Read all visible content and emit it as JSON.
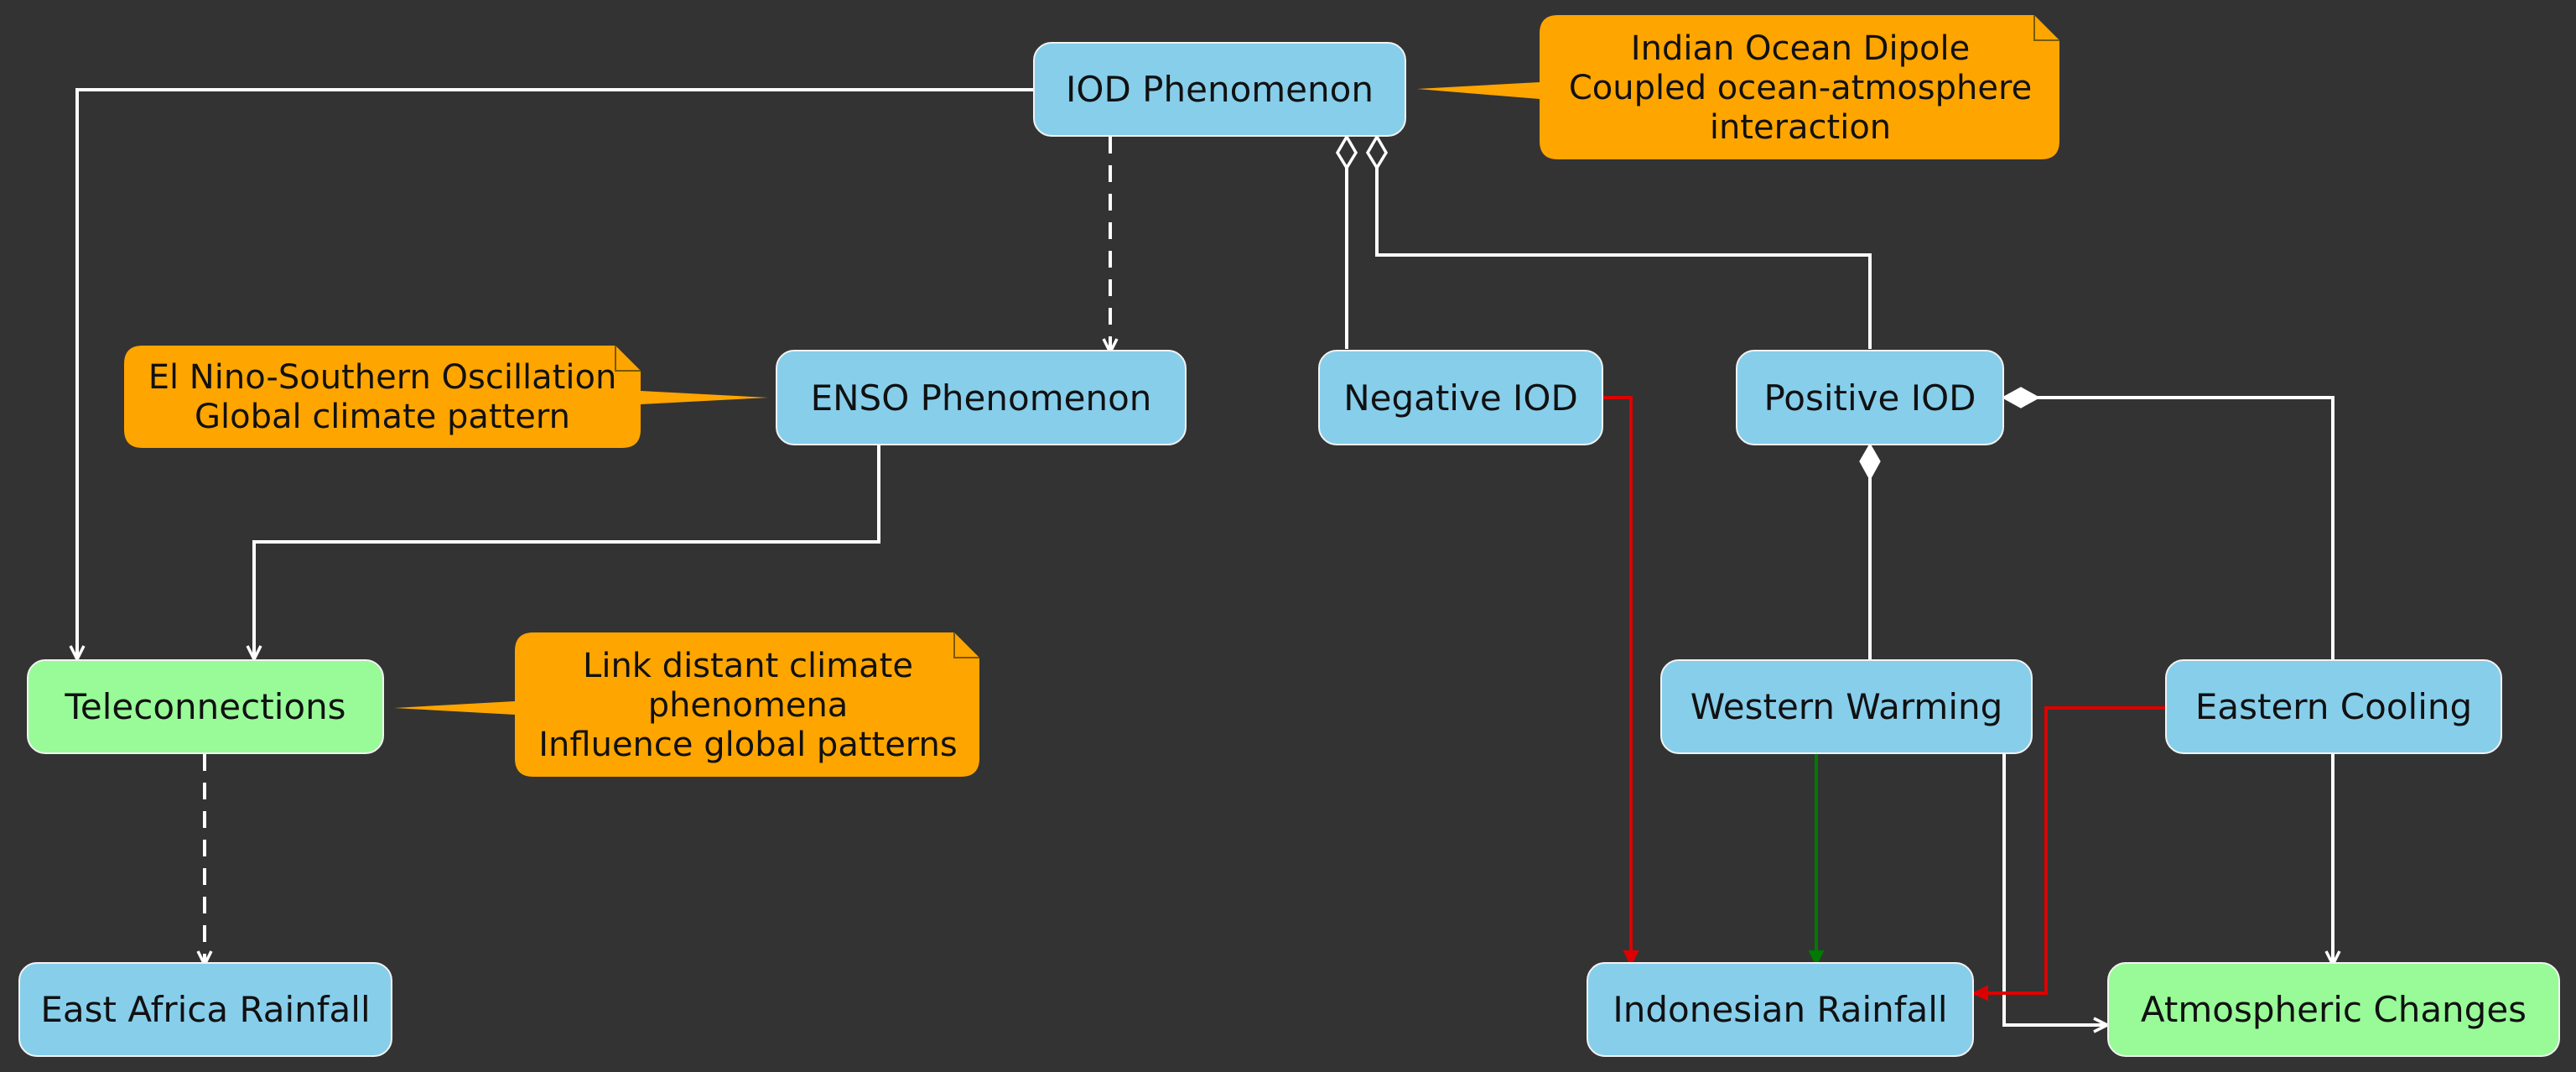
{
  "nodes": {
    "iod": "IOD Phenomenon",
    "enso": "ENSO Phenomenon",
    "negative_iod": "Negative IOD",
    "positive_iod": "Positive IOD",
    "teleconnections": "Teleconnections",
    "western_warming": "Western Warming",
    "eastern_cooling": "Eastern Cooling",
    "east_africa_rainfall": "East Africa Rainfall",
    "indonesian_rainfall": "Indonesian Rainfall",
    "atmospheric_changes": "Atmospheric Changes"
  },
  "notes": {
    "iod": [
      "Indian Ocean Dipole",
      "Coupled ocean-atmosphere",
      "interaction"
    ],
    "enso": [
      "El Nino-Southern Oscillation",
      "Global climate pattern"
    ],
    "teleconnections": [
      "Link distant climate",
      "phenomena",
      "Influence global patterns"
    ]
  },
  "colors": {
    "background": "#333333",
    "node_blue": "#87ceeb",
    "node_green": "#98fb98",
    "note_orange": "#ffa500",
    "edge_white": "#ffffff",
    "edge_red": "#dd0000",
    "edge_green": "#007a00"
  }
}
